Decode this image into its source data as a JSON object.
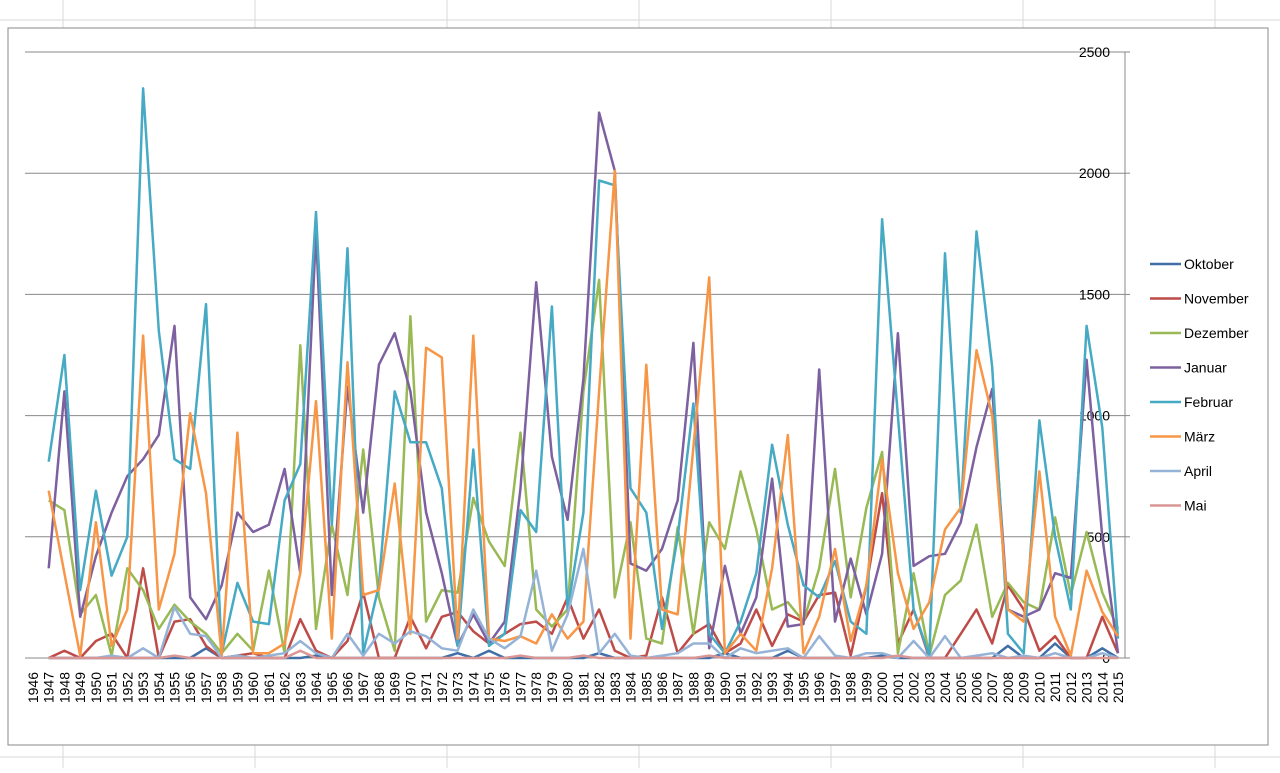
{
  "chart_data": {
    "type": "line",
    "categories": [
      "1946",
      "1947",
      "1948",
      "1949",
      "1950",
      "1951",
      "1952",
      "1953",
      "1954",
      "1955",
      "1956",
      "1957",
      "1958",
      "1959",
      "1960",
      "1961",
      "1962",
      "1963",
      "1964",
      "1965",
      "1966",
      "1967",
      "1968",
      "1969",
      "1970",
      "1971",
      "1972",
      "1973",
      "1974",
      "1975",
      "1976",
      "1977",
      "1978",
      "1979",
      "1980",
      "1981",
      "1982",
      "1983",
      "1984",
      "1985",
      "1986",
      "1987",
      "1988",
      "1989",
      "1990",
      "1991",
      "1992",
      "1993",
      "1994",
      "1995",
      "1996",
      "1997",
      "1998",
      "1999",
      "2000",
      "2001",
      "2002",
      "2003",
      "2004",
      "2005",
      "2006",
      "2007",
      "2008",
      "2009",
      "2010",
      "2011",
      "2012",
      "2013",
      "2014",
      "2015"
    ],
    "series": [
      {
        "name": "Oktober",
        "color": "#3f6fa6",
        "values": [
          null,
          0,
          0,
          0,
          0,
          0,
          0,
          0,
          0,
          0,
          0,
          40,
          0,
          0,
          0,
          0,
          0,
          0,
          10,
          0,
          0,
          0,
          0,
          0,
          0,
          0,
          0,
          20,
          0,
          30,
          0,
          0,
          0,
          0,
          0,
          0,
          20,
          0,
          0,
          0,
          0,
          0,
          0,
          0,
          20,
          0,
          0,
          0,
          30,
          0,
          0,
          0,
          0,
          0,
          10,
          0,
          0,
          0,
          0,
          0,
          0,
          0,
          50,
          0,
          0,
          60,
          0,
          0,
          40,
          0
        ]
      },
      {
        "name": "November",
        "color": "#be4b48",
        "values": [
          null,
          0,
          30,
          0,
          70,
          100,
          0,
          370,
          0,
          150,
          160,
          50,
          0,
          10,
          20,
          0,
          0,
          160,
          30,
          0,
          70,
          270,
          0,
          0,
          170,
          40,
          170,
          190,
          110,
          60,
          100,
          140,
          150,
          100,
          250,
          80,
          200,
          30,
          0,
          10,
          250,
          20,
          100,
          140,
          20,
          60,
          200,
          50,
          180,
          150,
          260,
          270,
          10,
          300,
          680,
          60,
          200,
          0,
          0,
          100,
          200,
          60,
          300,
          200,
          30,
          90,
          0,
          0,
          170,
          20
        ]
      },
      {
        "name": "Dezember",
        "color": "#98b954",
        "values": [
          null,
          650,
          610,
          180,
          260,
          10,
          370,
          280,
          120,
          220,
          150,
          100,
          20,
          100,
          30,
          360,
          20,
          1290,
          120,
          550,
          260,
          860,
          250,
          30,
          1410,
          150,
          280,
          270,
          660,
          480,
          380,
          930,
          200,
          130,
          200,
          1100,
          1560,
          250,
          560,
          80,
          60,
          540,
          100,
          560,
          450,
          770,
          530,
          200,
          230,
          150,
          370,
          780,
          250,
          620,
          850,
          20,
          350,
          10,
          260,
          320,
          550,
          170,
          310,
          230,
          200,
          580,
          260,
          520,
          270,
          120
        ]
      },
      {
        "name": "Januar",
        "color": "#7d60a0",
        "values": [
          null,
          370,
          1100,
          170,
          420,
          600,
          750,
          820,
          920,
          1370,
          250,
          160,
          300,
          600,
          520,
          550,
          780,
          350,
          1760,
          260,
          1120,
          600,
          1210,
          1340,
          1100,
          600,
          350,
          50,
          180,
          60,
          150,
          700,
          1550,
          830,
          570,
          1150,
          2250,
          2010,
          390,
          360,
          450,
          650,
          1300,
          40,
          380,
          100,
          250,
          740,
          130,
          140,
          1190,
          150,
          410,
          180,
          430,
          1340,
          380,
          420,
          430,
          560,
          870,
          1110,
          200,
          170,
          200,
          350,
          330,
          1230,
          500,
          20
        ]
      },
      {
        "name": "Februar",
        "color": "#46aac5",
        "values": [
          null,
          810,
          1250,
          280,
          690,
          340,
          500,
          2350,
          1350,
          820,
          780,
          1460,
          20,
          310,
          150,
          140,
          650,
          800,
          1840,
          550,
          1690,
          20,
          300,
          1100,
          890,
          890,
          700,
          50,
          860,
          50,
          100,
          610,
          520,
          1450,
          200,
          600,
          1970,
          1950,
          700,
          600,
          120,
          500,
          1050,
          100,
          20,
          150,
          350,
          880,
          550,
          300,
          250,
          400,
          150,
          100,
          1810,
          1000,
          200,
          10,
          1670,
          600,
          1760,
          1200,
          100,
          20,
          980,
          500,
          200,
          1370,
          950,
          80
        ]
      },
      {
        "name": "März",
        "color": "#f79646",
        "values": [
          null,
          690,
          350,
          10,
          560,
          50,
          200,
          1330,
          200,
          430,
          1010,
          680,
          10,
          930,
          20,
          20,
          60,
          350,
          1060,
          80,
          1220,
          260,
          280,
          720,
          100,
          1280,
          1240,
          80,
          1330,
          80,
          70,
          90,
          60,
          180,
          80,
          150,
          1100,
          2010,
          80,
          1210,
          200,
          180,
          870,
          1570,
          20,
          100,
          30,
          370,
          920,
          20,
          170,
          450,
          70,
          300,
          820,
          350,
          120,
          230,
          530,
          620,
          1270,
          1000,
          200,
          150,
          770,
          170,
          10,
          360,
          190,
          90
        ]
      },
      {
        "name": "April",
        "color": "#95b3d7",
        "values": [
          null,
          0,
          0,
          0,
          0,
          10,
          0,
          40,
          0,
          210,
          100,
          90,
          0,
          10,
          0,
          10,
          20,
          70,
          20,
          0,
          100,
          10,
          100,
          60,
          110,
          90,
          40,
          30,
          200,
          80,
          40,
          90,
          360,
          30,
          180,
          450,
          20,
          100,
          10,
          0,
          10,
          20,
          60,
          60,
          0,
          40,
          20,
          30,
          40,
          0,
          90,
          10,
          0,
          20,
          20,
          0,
          70,
          0,
          90,
          0,
          10,
          20,
          0,
          10,
          0,
          20,
          0,
          0,
          20,
          0
        ]
      },
      {
        "name": "Mai",
        "color": "#d99694",
        "values": [
          null,
          0,
          0,
          0,
          0,
          0,
          0,
          0,
          0,
          10,
          0,
          0,
          0,
          0,
          0,
          0,
          0,
          30,
          0,
          0,
          0,
          0,
          0,
          0,
          0,
          0,
          0,
          0,
          0,
          0,
          0,
          10,
          0,
          0,
          0,
          10,
          0,
          0,
          0,
          0,
          0,
          0,
          0,
          10,
          0,
          0,
          0,
          0,
          0,
          0,
          0,
          0,
          0,
          0,
          0,
          10,
          0,
          0,
          0,
          0,
          0,
          0,
          0,
          0,
          0,
          0,
          0,
          0,
          0,
          0
        ]
      }
    ],
    "ylim": [
      0,
      2500
    ],
    "yticks": [
      0,
      500,
      1000,
      1500,
      2000,
      2500
    ],
    "grid": true,
    "legend": "right"
  }
}
